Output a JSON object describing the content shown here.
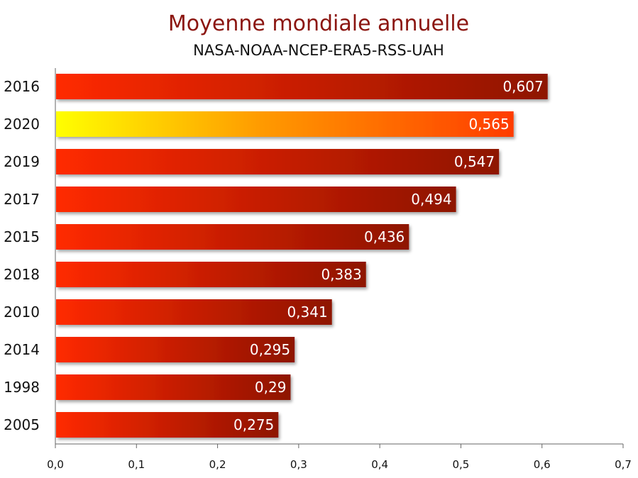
{
  "chart_data": {
    "type": "bar",
    "orientation": "horizontal",
    "title": "Moyenne mondiale annuelle",
    "subtitle": "NASA-NOAA-NCEP-ERA5-RSS-UAH",
    "categories": [
      "2016",
      "2020",
      "2019",
      "2017",
      "2015",
      "2018",
      "2010",
      "2014",
      "1998",
      "2005"
    ],
    "values": [
      0.607,
      0.565,
      0.547,
      0.494,
      0.436,
      0.383,
      0.341,
      0.295,
      0.29,
      0.275
    ],
    "value_labels": [
      "0,607",
      "0,565",
      "0,547",
      "0,494",
      "0,436",
      "0,383",
      "0,341",
      "0,295",
      "0,29",
      "0,275"
    ],
    "xlim": [
      0,
      0.7
    ],
    "x_ticks": [
      0,
      0.1,
      0.2,
      0.3,
      0.4,
      0.5,
      0.6,
      0.7
    ],
    "x_tick_labels": [
      "0,0",
      "0,1",
      "0,2",
      "0,3",
      "0,4",
      "0,5",
      "0,6",
      "0,7"
    ],
    "highlight_category": "2020",
    "grid": false,
    "legend": "none",
    "colors": {
      "bar_start": "#ff2a00",
      "bar_end": "#8e1200",
      "highlight_start": "#ffff00",
      "highlight_end": "#ff3c00",
      "title": "#8b1510"
    }
  }
}
